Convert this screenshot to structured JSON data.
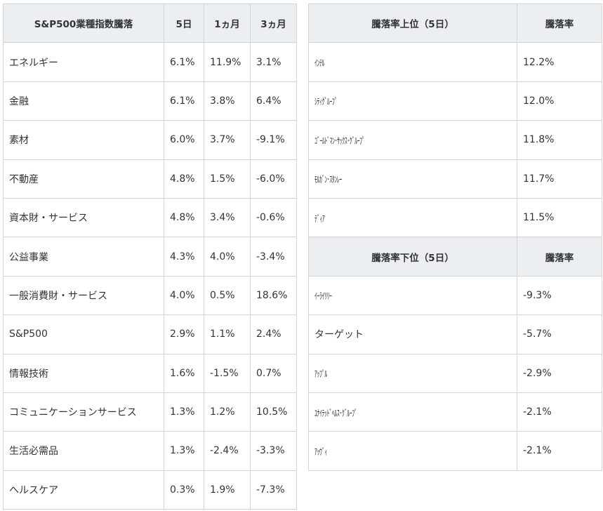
{
  "sector_table": {
    "headers": [
      "S&P500業種指数騰落",
      "5日",
      "1ヵ月",
      "3ヵ月"
    ],
    "rows": [
      [
        "エネルギー",
        "6.1%",
        "11.9%",
        "3.1%"
      ],
      [
        "金融",
        "6.1%",
        "3.8%",
        "6.4%"
      ],
      [
        "素材",
        "6.0%",
        "3.7%",
        "-9.1%"
      ],
      [
        "不動産",
        "4.8%",
        "1.5%",
        "-6.0%"
      ],
      [
        "資本財・サービス",
        "4.8%",
        "3.4%",
        "-0.6%"
      ],
      [
        "公益事業",
        "4.3%",
        "4.0%",
        "-3.4%"
      ],
      [
        "一般消費財・サービス",
        "4.0%",
        "0.5%",
        "18.6%"
      ],
      [
        "S&P500",
        "2.9%",
        "1.1%",
        "2.4%"
      ],
      [
        "情報技術",
        "1.6%",
        "-1.5%",
        "0.7%"
      ],
      [
        "コミュニケーションサービス",
        "1.3%",
        "1.2%",
        "10.5%"
      ],
      [
        "生活必需品",
        "1.3%",
        "-2.4%",
        "-3.3%"
      ],
      [
        "ヘルスケア",
        "0.3%",
        "1.9%",
        "-7.3%"
      ]
    ]
  },
  "top_movers": {
    "headers": [
      "騰落率上位（5日）",
      "騰落率"
    ],
    "rows": [
      [
        "ｲﾝﾃﾙ",
        "12.2%"
      ],
      [
        "ｼﾃｨｸﾞﾙｰﾌﾟ",
        "12.0%"
      ],
      [
        "ｺﾞｰﾙﾄﾞﾏﾝ･ｻｯｸｽ･ｸﾞﾙｰﾌﾟ",
        "11.8%"
      ],
      [
        "ﾓﾙｶﾞﾝ･ｽﾀﾝﾚｰ",
        "11.7%"
      ],
      [
        "ﾃﾞｨｱ",
        "11.5%"
      ]
    ]
  },
  "bottom_movers": {
    "headers": [
      "騰落率下位（5日）",
      "騰落率"
    ],
    "rows": [
      [
        "ｲｰﾗｲﾘﾘｰ",
        "-9.3%"
      ],
      [
        "ターゲット",
        "-5.7%"
      ],
      [
        "ｱｯﾌﾟﾙ",
        "-2.9%"
      ],
      [
        "ﾕﾅｲﾃｯﾄﾞﾍﾙｽ･ｸﾞﾙｰﾌﾟ",
        "-2.1%"
      ],
      [
        "ｱｯｳﾞｨ",
        "-2.1%"
      ]
    ]
  }
}
